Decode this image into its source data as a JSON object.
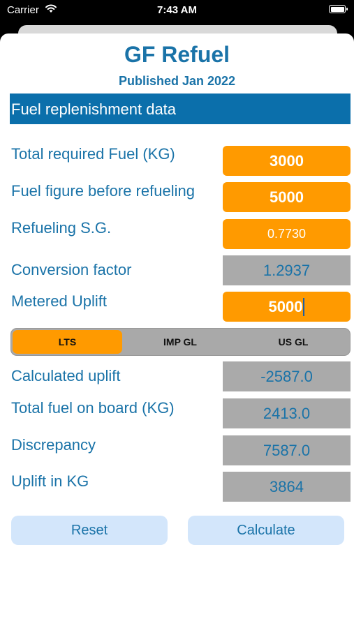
{
  "status_bar": {
    "carrier": "Carrier",
    "time": "7:43 AM"
  },
  "app": {
    "title": "GF Refuel",
    "subtitle": "Published Jan 2022"
  },
  "section": {
    "title": "Fuel replenishment data"
  },
  "fields": [
    {
      "label": "Total required Fuel (KG)",
      "value": "3000"
    },
    {
      "label": "Fuel figure before refueling",
      "value": "5000"
    },
    {
      "label": "Refueling S.G.",
      "value": "0.7730"
    },
    {
      "label": "Conversion factor",
      "value": "1.2937"
    },
    {
      "label": "Metered Uplift",
      "value": "5000"
    }
  ],
  "units": {
    "options": [
      "LTS",
      "IMP GL",
      "US GL"
    ],
    "selected": "LTS"
  },
  "results": [
    {
      "label": "Calculated uplift",
      "value": "-2587.0"
    },
    {
      "label": "Total fuel on board (KG)",
      "value": "2413.0"
    },
    {
      "label": "Discrepancy",
      "value": "7587.0"
    },
    {
      "label": "Uplift in KG",
      "value": "3864"
    }
  ],
  "buttons": {
    "reset": "Reset",
    "calculate": "Calculate"
  },
  "colors": {
    "accent_orange": "#ff9a00",
    "primary_blue": "#0b6fab",
    "text_blue": "#1a73a8",
    "readonly_grey": "#aaaaaa",
    "button_bg": "#d3e6fb"
  }
}
